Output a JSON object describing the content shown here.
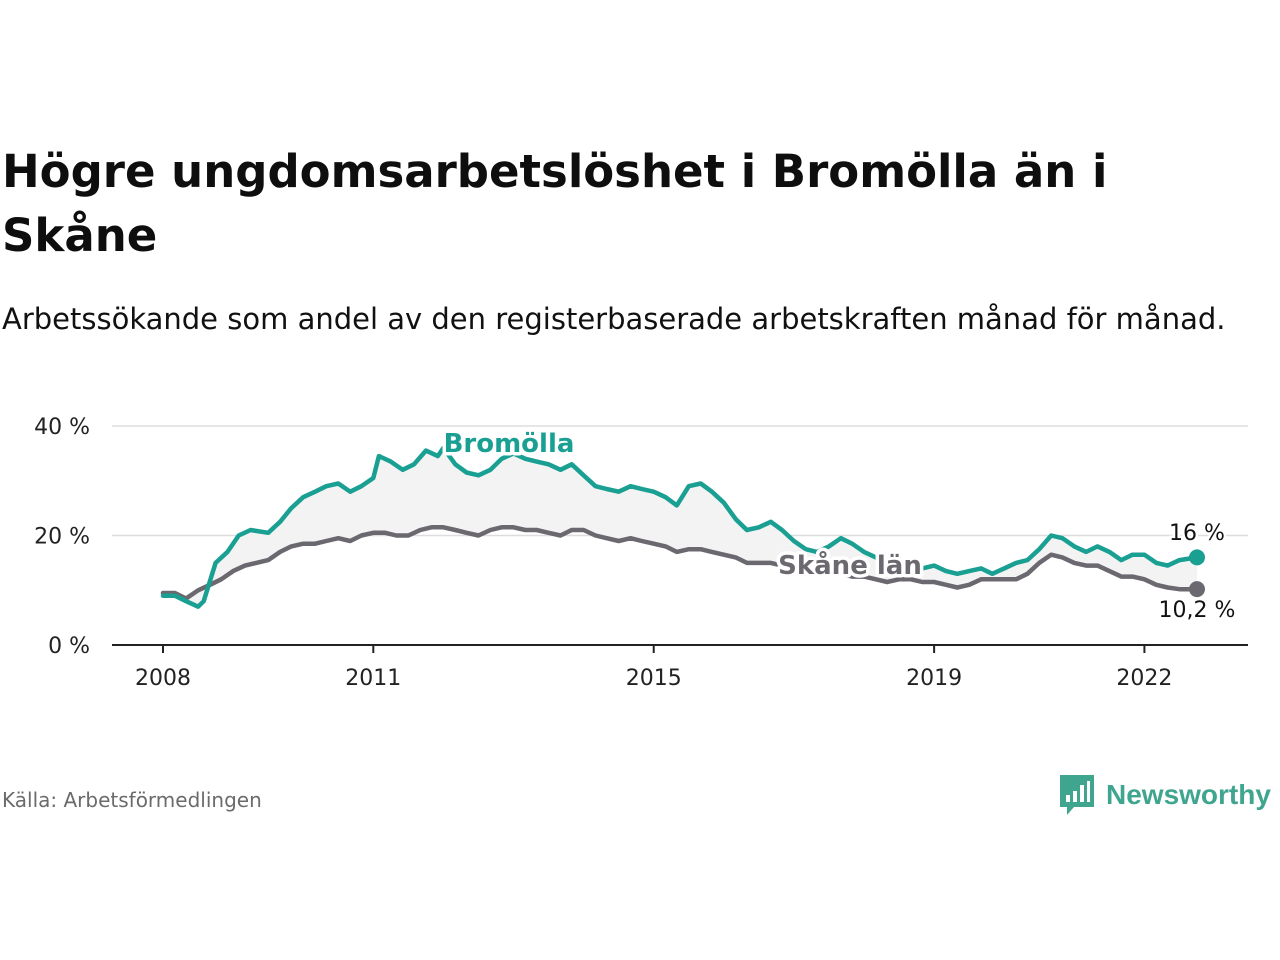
{
  "title": "Högre ungdomsarbetslöshet i Bromölla än i Skåne",
  "subtitle": "Arbetssökande som andel av den registerbaserade arbetskraften månad för månad.",
  "source": "Källa: Arbetsförmedlingen",
  "brand": {
    "name": "Newsworthy",
    "icon": "newsworthy-logo-icon",
    "color": "#3fa58f"
  },
  "colors": {
    "bromolla": "#1aa093",
    "skane": "#6b6870",
    "band": "#f3f3f3",
    "grid": "#dddddd"
  },
  "chart_data": {
    "type": "line",
    "title": "Högre ungdomsarbetslöshet i Bromölla än i Skåne",
    "xlabel": "",
    "ylabel": "",
    "xlim": [
      2008,
      2022.75
    ],
    "ylim": [
      0,
      40
    ],
    "x_ticks": [
      2008,
      2011,
      2015,
      2019,
      2022
    ],
    "y_ticks": [
      0,
      20,
      40
    ],
    "y_tick_suffix": " %",
    "grid": true,
    "series": [
      {
        "name": "Bromölla",
        "label": "Bromölla",
        "end_label": "16 %",
        "color": "#1aa093",
        "points": [
          [
            2008.0,
            9
          ],
          [
            2008.17,
            9
          ],
          [
            2008.33,
            8
          ],
          [
            2008.5,
            7
          ],
          [
            2008.58,
            8
          ],
          [
            2008.75,
            15
          ],
          [
            2008.92,
            17
          ],
          [
            2009.08,
            20
          ],
          [
            2009.25,
            21
          ],
          [
            2009.5,
            20.5
          ],
          [
            2009.67,
            22.5
          ],
          [
            2009.83,
            25
          ],
          [
            2010.0,
            27
          ],
          [
            2010.17,
            28
          ],
          [
            2010.33,
            29
          ],
          [
            2010.5,
            29.5
          ],
          [
            2010.67,
            28
          ],
          [
            2010.83,
            29
          ],
          [
            2011.0,
            30.5
          ],
          [
            2011.08,
            34.5
          ],
          [
            2011.25,
            33.5
          ],
          [
            2011.42,
            32
          ],
          [
            2011.58,
            33
          ],
          [
            2011.75,
            35.5
          ],
          [
            2011.92,
            34.5
          ],
          [
            2012.0,
            36
          ],
          [
            2012.17,
            33
          ],
          [
            2012.33,
            31.5
          ],
          [
            2012.5,
            31
          ],
          [
            2012.67,
            32
          ],
          [
            2012.83,
            34
          ],
          [
            2013.0,
            35
          ],
          [
            2013.17,
            34
          ],
          [
            2013.33,
            33.5
          ],
          [
            2013.5,
            33
          ],
          [
            2013.67,
            32
          ],
          [
            2013.83,
            33
          ],
          [
            2014.0,
            31
          ],
          [
            2014.17,
            29
          ],
          [
            2014.33,
            28.5
          ],
          [
            2014.5,
            28
          ],
          [
            2014.67,
            29
          ],
          [
            2014.83,
            28.5
          ],
          [
            2015.0,
            28
          ],
          [
            2015.17,
            27
          ],
          [
            2015.33,
            25.5
          ],
          [
            2015.5,
            29
          ],
          [
            2015.67,
            29.5
          ],
          [
            2015.83,
            28
          ],
          [
            2016.0,
            26
          ],
          [
            2016.17,
            23
          ],
          [
            2016.33,
            21
          ],
          [
            2016.5,
            21.5
          ],
          [
            2016.67,
            22.5
          ],
          [
            2016.83,
            21
          ],
          [
            2017.0,
            19
          ],
          [
            2017.17,
            17.5
          ],
          [
            2017.33,
            17
          ],
          [
            2017.5,
            18
          ],
          [
            2017.67,
            19.5
          ],
          [
            2017.83,
            18.5
          ],
          [
            2018.0,
            17
          ],
          [
            2018.17,
            16
          ],
          [
            2018.33,
            15
          ],
          [
            2018.5,
            14.5
          ],
          [
            2018.67,
            14
          ],
          [
            2018.83,
            14
          ],
          [
            2019.0,
            14.5
          ],
          [
            2019.17,
            13.5
          ],
          [
            2019.33,
            13
          ],
          [
            2019.5,
            13.5
          ],
          [
            2019.67,
            14
          ],
          [
            2019.83,
            13
          ],
          [
            2020.0,
            14
          ],
          [
            2020.17,
            15
          ],
          [
            2020.33,
            15.5
          ],
          [
            2020.5,
            17.5
          ],
          [
            2020.67,
            20
          ],
          [
            2020.83,
            19.5
          ],
          [
            2021.0,
            18
          ],
          [
            2021.17,
            17
          ],
          [
            2021.33,
            18
          ],
          [
            2021.5,
            17
          ],
          [
            2021.67,
            15.5
          ],
          [
            2021.83,
            16.5
          ],
          [
            2022.0,
            16.5
          ],
          [
            2022.17,
            15
          ],
          [
            2022.33,
            14.5
          ],
          [
            2022.5,
            15.5
          ],
          [
            2022.75,
            16
          ]
        ]
      },
      {
        "name": "Skåne län",
        "label": "Skåne län",
        "end_label": "10,2 %",
        "color": "#6b6870",
        "points": [
          [
            2008.0,
            9.5
          ],
          [
            2008.17,
            9.5
          ],
          [
            2008.33,
            8.5
          ],
          [
            2008.5,
            10
          ],
          [
            2008.67,
            11
          ],
          [
            2008.83,
            12
          ],
          [
            2009.0,
            13.5
          ],
          [
            2009.17,
            14.5
          ],
          [
            2009.33,
            15
          ],
          [
            2009.5,
            15.5
          ],
          [
            2009.67,
            17
          ],
          [
            2009.83,
            18
          ],
          [
            2010.0,
            18.5
          ],
          [
            2010.17,
            18.5
          ],
          [
            2010.33,
            19
          ],
          [
            2010.5,
            19.5
          ],
          [
            2010.67,
            19
          ],
          [
            2010.83,
            20
          ],
          [
            2011.0,
            20.5
          ],
          [
            2011.17,
            20.5
          ],
          [
            2011.33,
            20
          ],
          [
            2011.5,
            20
          ],
          [
            2011.67,
            21
          ],
          [
            2011.83,
            21.5
          ],
          [
            2012.0,
            21.5
          ],
          [
            2012.17,
            21
          ],
          [
            2012.33,
            20.5
          ],
          [
            2012.5,
            20
          ],
          [
            2012.67,
            21
          ],
          [
            2012.83,
            21.5
          ],
          [
            2013.0,
            21.5
          ],
          [
            2013.17,
            21
          ],
          [
            2013.33,
            21
          ],
          [
            2013.5,
            20.5
          ],
          [
            2013.67,
            20
          ],
          [
            2013.83,
            21
          ],
          [
            2014.0,
            21
          ],
          [
            2014.17,
            20
          ],
          [
            2014.33,
            19.5
          ],
          [
            2014.5,
            19
          ],
          [
            2014.67,
            19.5
          ],
          [
            2014.83,
            19
          ],
          [
            2015.0,
            18.5
          ],
          [
            2015.17,
            18
          ],
          [
            2015.33,
            17
          ],
          [
            2015.5,
            17.5
          ],
          [
            2015.67,
            17.5
          ],
          [
            2015.83,
            17
          ],
          [
            2016.0,
            16.5
          ],
          [
            2016.17,
            16
          ],
          [
            2016.33,
            15
          ],
          [
            2016.5,
            15
          ],
          [
            2016.67,
            15
          ],
          [
            2016.83,
            14.5
          ],
          [
            2017.0,
            14
          ],
          [
            2017.17,
            13.5
          ],
          [
            2017.33,
            13.5
          ],
          [
            2017.5,
            13
          ],
          [
            2017.67,
            13
          ],
          [
            2017.83,
            12.5
          ],
          [
            2018.0,
            12.5
          ],
          [
            2018.17,
            12
          ],
          [
            2018.33,
            11.5
          ],
          [
            2018.5,
            12
          ],
          [
            2018.67,
            12
          ],
          [
            2018.83,
            11.5
          ],
          [
            2019.0,
            11.5
          ],
          [
            2019.17,
            11
          ],
          [
            2019.33,
            10.5
          ],
          [
            2019.5,
            11
          ],
          [
            2019.67,
            12
          ],
          [
            2019.83,
            12
          ],
          [
            2020.0,
            12
          ],
          [
            2020.17,
            12
          ],
          [
            2020.33,
            13
          ],
          [
            2020.5,
            15
          ],
          [
            2020.67,
            16.5
          ],
          [
            2020.83,
            16
          ],
          [
            2021.0,
            15
          ],
          [
            2021.17,
            14.5
          ],
          [
            2021.33,
            14.5
          ],
          [
            2021.5,
            13.5
          ],
          [
            2021.67,
            12.5
          ],
          [
            2021.83,
            12.5
          ],
          [
            2022.0,
            12
          ],
          [
            2022.17,
            11
          ],
          [
            2022.33,
            10.5
          ],
          [
            2022.5,
            10.2
          ],
          [
            2022.75,
            10.2
          ]
        ]
      }
    ]
  }
}
